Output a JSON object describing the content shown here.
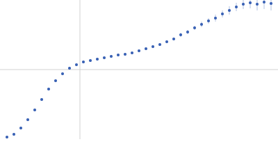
{
  "chart_data": {
    "type": "scatter",
    "x": [
      0.1,
      0.2,
      0.3,
      0.4,
      0.5,
      0.6,
      0.7,
      0.8,
      0.9,
      1.0,
      1.1,
      1.2,
      1.3,
      1.4,
      1.5,
      1.6,
      1.7,
      1.8,
      1.9,
      2.0,
      2.1,
      2.2,
      2.3,
      2.4,
      2.5,
      2.6,
      2.7,
      2.8,
      2.9,
      3.0,
      3.1,
      3.2,
      3.3,
      3.4,
      3.5,
      3.6,
      3.7,
      3.8,
      3.9
    ],
    "series": [
      {
        "color": "#3a62b5",
        "values": [
          0.03,
          0.07,
          0.16,
          0.28,
          0.42,
          0.57,
          0.72,
          0.84,
          0.94,
          1.02,
          1.07,
          1.11,
          1.13,
          1.15,
          1.17,
          1.19,
          1.21,
          1.22,
          1.24,
          1.27,
          1.3,
          1.33,
          1.36,
          1.4,
          1.44,
          1.5,
          1.54,
          1.6,
          1.65,
          1.7,
          1.74,
          1.8,
          1.85,
          1.9,
          1.94,
          1.96,
          1.94,
          1.97,
          1.95
        ],
        "errors": [
          0.005,
          0.005,
          0.005,
          0.005,
          0.005,
          0.005,
          0.005,
          0.005,
          0.005,
          0.005,
          0.005,
          0.005,
          0.005,
          0.005,
          0.005,
          0.005,
          0.005,
          0.005,
          0.005,
          0.005,
          0.01,
          0.01,
          0.02,
          0.02,
          0.02,
          0.03,
          0.03,
          0.03,
          0.04,
          0.04,
          0.05,
          0.05,
          0.06,
          0.06,
          0.07,
          0.08,
          0.09,
          0.1,
          0.1
        ]
      }
    ],
    "xlim": [
      0,
      4
    ],
    "ylim": [
      0,
      2
    ],
    "xticks": [
      1.15
    ],
    "yticks": [
      1
    ],
    "grid": true,
    "grid_color": "#d0d0d0"
  }
}
